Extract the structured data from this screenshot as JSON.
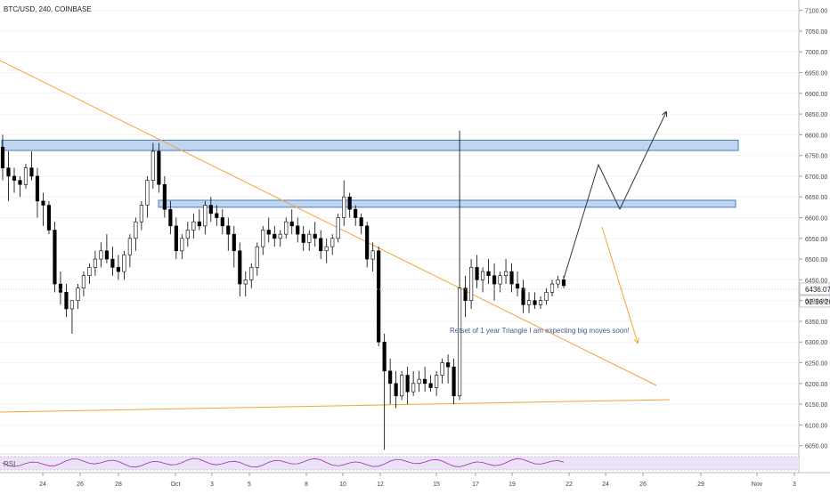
{
  "header": {
    "symbol_label": "BTC/USD, 240, COINBASE"
  },
  "price_axis": {
    "ticks": [
      7100,
      7050,
      7000,
      6950,
      6900,
      6850,
      6800,
      6750,
      6700,
      6650,
      6600,
      6550,
      6500,
      6450,
      6400,
      6350,
      6300,
      6250,
      6200,
      6150,
      6100,
      6050
    ],
    "tick_labels": [
      "7100.00",
      "7050.00",
      "7000.00",
      "6950.00",
      "6900.00",
      "6850.00",
      "6800.00",
      "6750.00",
      "6700.00",
      "6650.00",
      "6600.00",
      "6550.00",
      "6500.00",
      "6450.00",
      "6400.00",
      "6350.00",
      "6300.00",
      "6250.00",
      "6200.00",
      "6150.00",
      "6100.00",
      "6050.00"
    ],
    "last_price_label": "6436.07",
    "countdown_label": "02:36:20"
  },
  "time_axis": {
    "labels": [
      "24",
      "26",
      "28",
      "Oct",
      "3",
      "5",
      "8",
      "10",
      "12",
      "15",
      "17",
      "19",
      "22",
      "24",
      "26",
      "29",
      "Nov",
      "3"
    ]
  },
  "annotation": {
    "text": "Retset of 1 year Triangle I am expecting big moves soon!"
  },
  "rsi": {
    "label": "RSI"
  },
  "colors": {
    "up": "#ffffff",
    "down": "#000000",
    "wick": "#000000",
    "zone_fill": "#bfd5f0",
    "zone_stroke": "#3a6fb5",
    "trendline": "#f7a23b",
    "projection_up": "#333333",
    "projection_down": "#f7a23b",
    "rsi_line": "#9c27b0",
    "rsi_fill": "#ece2f5"
  },
  "chart_data": {
    "type": "candlestick",
    "title": "BTC/USD, 240, COINBASE",
    "ylim": [
      6030,
      7125
    ],
    "candles": [
      [
        6770,
        6800,
        6690,
        6720
      ],
      [
        6720,
        6760,
        6640,
        6700
      ],
      [
        6700,
        6720,
        6660,
        6690
      ],
      [
        6690,
        6700,
        6650,
        6680
      ],
      [
        6680,
        6730,
        6670,
        6720
      ],
      [
        6720,
        6760,
        6690,
        6700
      ],
      [
        6700,
        6720,
        6600,
        6640
      ],
      [
        6640,
        6660,
        6580,
        6630
      ],
      [
        6630,
        6640,
        6560,
        6570
      ],
      [
        6570,
        6590,
        6420,
        6440
      ],
      [
        6440,
        6470,
        6390,
        6420
      ],
      [
        6420,
        6440,
        6360,
        6380
      ],
      [
        6380,
        6400,
        6320,
        6400
      ],
      [
        6400,
        6440,
        6380,
        6430
      ],
      [
        6430,
        6470,
        6410,
        6460
      ],
      [
        6460,
        6490,
        6440,
        6480
      ],
      [
        6480,
        6520,
        6460,
        6500
      ],
      [
        6500,
        6540,
        6480,
        6520
      ],
      [
        6520,
        6560,
        6490,
        6500
      ],
      [
        6500,
        6530,
        6460,
        6480
      ],
      [
        6480,
        6510,
        6450,
        6470
      ],
      [
        6470,
        6520,
        6450,
        6510
      ],
      [
        6510,
        6560,
        6480,
        6550
      ],
      [
        6550,
        6600,
        6520,
        6590
      ],
      [
        6590,
        6640,
        6570,
        6630
      ],
      [
        6630,
        6700,
        6600,
        6690
      ],
      [
        6690,
        6780,
        6670,
        6760
      ],
      [
        6760,
        6780,
        6660,
        6680
      ],
      [
        6680,
        6700,
        6600,
        6620
      ],
      [
        6620,
        6640,
        6560,
        6580
      ],
      [
        6580,
        6600,
        6500,
        6520
      ],
      [
        6520,
        6560,
        6500,
        6550
      ],
      [
        6550,
        6590,
        6530,
        6570
      ],
      [
        6570,
        6610,
        6550,
        6590
      ],
      [
        6590,
        6620,
        6570,
        6580
      ],
      [
        6580,
        6640,
        6560,
        6630
      ],
      [
        6630,
        6650,
        6590,
        6610
      ],
      [
        6610,
        6630,
        6580,
        6600
      ],
      [
        6600,
        6620,
        6560,
        6580
      ],
      [
        6580,
        6600,
        6520,
        6560
      ],
      [
        6560,
        6580,
        6480,
        6520
      ],
      [
        6520,
        6540,
        6410,
        6440
      ],
      [
        6440,
        6470,
        6410,
        6450
      ],
      [
        6450,
        6490,
        6430,
        6480
      ],
      [
        6480,
        6540,
        6460,
        6530
      ],
      [
        6530,
        6580,
        6510,
        6570
      ],
      [
        6570,
        6600,
        6540,
        6560
      ],
      [
        6560,
        6580,
        6530,
        6550
      ],
      [
        6550,
        6570,
        6530,
        6560
      ],
      [
        6560,
        6600,
        6550,
        6590
      ],
      [
        6590,
        6620,
        6560,
        6580
      ],
      [
        6580,
        6600,
        6540,
        6560
      ],
      [
        6560,
        6580,
        6520,
        6540
      ],
      [
        6540,
        6570,
        6520,
        6560
      ],
      [
        6560,
        6590,
        6530,
        6550
      ],
      [
        6550,
        6570,
        6500,
        6520
      ],
      [
        6520,
        6550,
        6490,
        6530
      ],
      [
        6530,
        6560,
        6510,
        6550
      ],
      [
        6550,
        6610,
        6540,
        6600
      ],
      [
        6600,
        6690,
        6580,
        6650
      ],
      [
        6650,
        6660,
        6600,
        6620
      ],
      [
        6620,
        6630,
        6580,
        6600
      ],
      [
        6600,
        6610,
        6560,
        6580
      ],
      [
        6580,
        6590,
        6480,
        6500
      ],
      [
        6500,
        6540,
        6470,
        6520
      ],
      [
        6520,
        6530,
        6290,
        6300
      ],
      [
        6300,
        6320,
        6040,
        6230
      ],
      [
        6230,
        6260,
        6150,
        6200
      ],
      [
        6200,
        6230,
        6140,
        6170
      ],
      [
        6170,
        6230,
        6160,
        6220
      ],
      [
        6220,
        6240,
        6150,
        6180
      ],
      [
        6180,
        6230,
        6170,
        6200
      ],
      [
        6200,
        6230,
        6180,
        6210
      ],
      [
        6210,
        6240,
        6180,
        6200
      ],
      [
        6200,
        6220,
        6180,
        6190
      ],
      [
        6190,
        6230,
        6170,
        6220
      ],
      [
        6220,
        6260,
        6200,
        6250
      ],
      [
        6250,
        6270,
        6200,
        6240
      ],
      [
        6240,
        6260,
        6150,
        6170
      ],
      [
        6170,
        6810,
        6160,
        6430
      ],
      [
        6430,
        6460,
        6360,
        6400
      ],
      [
        6400,
        6500,
        6380,
        6480
      ],
      [
        6480,
        6510,
        6430,
        6450
      ],
      [
        6450,
        6480,
        6420,
        6470
      ],
      [
        6470,
        6500,
        6440,
        6460
      ],
      [
        6460,
        6490,
        6400,
        6440
      ],
      [
        6440,
        6470,
        6420,
        6460
      ],
      [
        6460,
        6500,
        6440,
        6470
      ],
      [
        6470,
        6490,
        6420,
        6440
      ],
      [
        6440,
        6470,
        6410,
        6430
      ],
      [
        6430,
        6450,
        6370,
        6390
      ],
      [
        6390,
        6420,
        6370,
        6400
      ],
      [
        6400,
        6420,
        6380,
        6390
      ],
      [
        6390,
        6410,
        6380,
        6400
      ],
      [
        6400,
        6430,
        6390,
        6420
      ],
      [
        6420,
        6450,
        6410,
        6440
      ],
      [
        6440,
        6460,
        6430,
        6450
      ],
      [
        6450,
        6460,
        6430,
        6436
      ]
    ],
    "zones": [
      [
        6762,
        6787
      ],
      [
        6625,
        6642
      ]
    ],
    "annotation": "Retset of 1 year Triangle I am expecting big moves soon!"
  }
}
